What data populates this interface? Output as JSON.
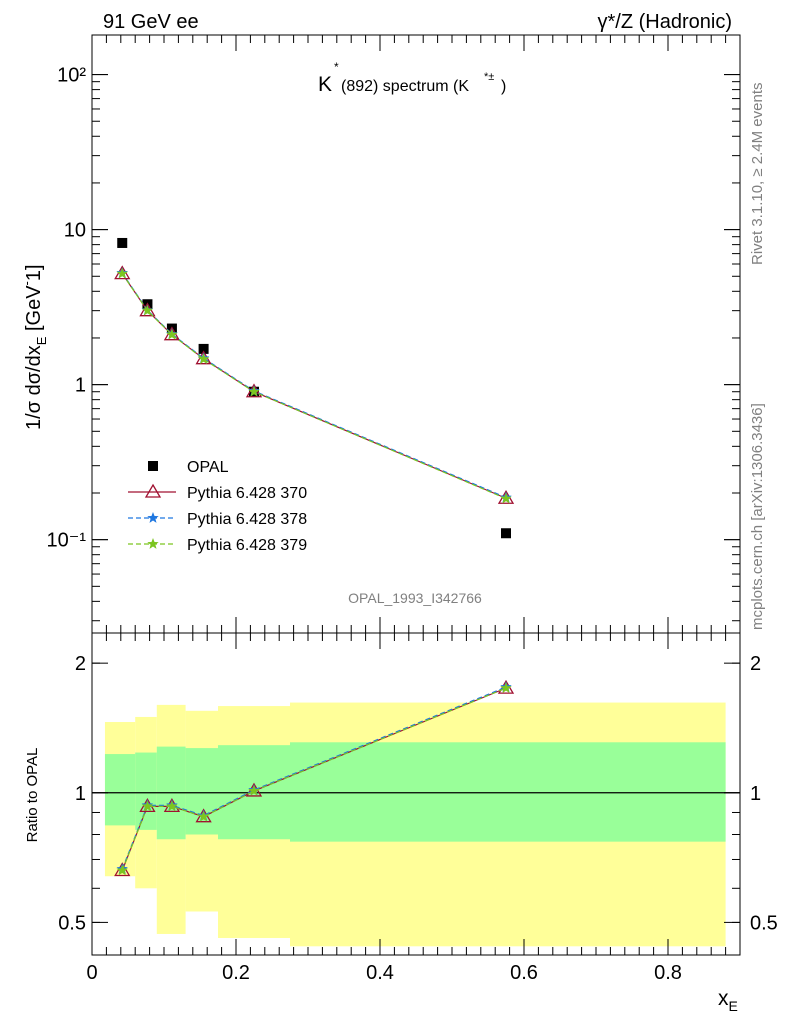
{
  "header": {
    "left": "91 GeV ee",
    "right": "γ*/Z (Hadronic)"
  },
  "side_labels": {
    "rivet": "Rivet 3.1.10, ≥ 2.4M events",
    "mcplots": "mcplots.cern.ch [arXiv:1306.3436]"
  },
  "analysis_id": "OPAL_1993_I342766",
  "chart_data": [
    {
      "type": "line",
      "title": "K*(892) spectrum (K*±)",
      "title_parts": {
        "k": "K",
        "star": "*",
        "mass": "(892) spectrum (K",
        "sup": "*±",
        "close": ")"
      },
      "ylabel": "1/σ dσ/dx_E [GeV⁻1]",
      "ylabel_parts": {
        "main": "1/σ dσ/dx",
        "sub": "E",
        "unit": " [GeV",
        "sup": "-",
        "tail": "1]"
      },
      "xlim": [
        0,
        0.9
      ],
      "ylim": [
        0.025,
        180
      ],
      "yscale": "log",
      "ytick_labels": [
        "10⁻¹",
        "1",
        "10",
        "10²"
      ],
      "ytick_values": [
        0.1,
        1,
        10,
        100
      ],
      "legend_position": "lower-left",
      "series": [
        {
          "name": "OPAL",
          "style": "markers",
          "marker": "square",
          "color": "#000000",
          "x": [
            0.042,
            0.077,
            0.111,
            0.155,
            0.225,
            0.575
          ],
          "y": [
            8.2,
            3.3,
            2.3,
            1.7,
            0.9,
            0.11
          ]
        },
        {
          "name": "Pythia 6.428 370",
          "style": "solid",
          "marker": "triangle",
          "color": "#a01030",
          "x": [
            0.042,
            0.077,
            0.111,
            0.155,
            0.225,
            0.575
          ],
          "y": [
            5.2,
            3.0,
            2.1,
            1.47,
            0.9,
            0.185
          ]
        },
        {
          "name": "Pythia 6.428 378",
          "style": "dashed",
          "marker": "star",
          "color": "#1f77e0",
          "x": [
            0.042,
            0.077,
            0.111,
            0.155,
            0.225,
            0.575
          ],
          "y": [
            5.25,
            3.02,
            2.12,
            1.48,
            0.91,
            0.187
          ]
        },
        {
          "name": "Pythia 6.428 379",
          "style": "dashed",
          "marker": "star",
          "color": "#7cc520",
          "x": [
            0.042,
            0.077,
            0.111,
            0.155,
            0.225,
            0.575
          ],
          "y": [
            5.2,
            3.0,
            2.1,
            1.46,
            0.9,
            0.184
          ]
        }
      ]
    },
    {
      "type": "line",
      "ylabel": "Ratio to OPAL",
      "xlabel": "x_E",
      "xlabel_parts": {
        "main": "x",
        "sub": "E"
      },
      "xlim": [
        0,
        0.9
      ],
      "ylim": [
        0.42,
        2.35
      ],
      "yscale": "log",
      "ytick_labels": [
        "0.5",
        "1",
        "2"
      ],
      "ytick_values": [
        0.5,
        1,
        2
      ],
      "xtick_labels": [
        "0",
        "0.2",
        "0.4",
        "0.6",
        "0.8"
      ],
      "xtick_values": [
        0,
        0.2,
        0.4,
        0.6,
        0.8
      ],
      "reference_line": 1,
      "bands": [
        {
          "x_lo": 0.018,
          "x_hi": 0.06,
          "yellow": [
            0.64,
            1.46
          ],
          "green": [
            0.84,
            1.23
          ]
        },
        {
          "x_lo": 0.06,
          "x_hi": 0.09,
          "yellow": [
            0.6,
            1.5
          ],
          "green": [
            0.82,
            1.24
          ]
        },
        {
          "x_lo": 0.09,
          "x_hi": 0.13,
          "yellow": [
            0.47,
            1.6
          ],
          "green": [
            0.78,
            1.28
          ]
        },
        {
          "x_lo": 0.13,
          "x_hi": 0.175,
          "yellow": [
            0.53,
            1.55
          ],
          "green": [
            0.8,
            1.27
          ]
        },
        {
          "x_lo": 0.175,
          "x_hi": 0.275,
          "yellow": [
            0.46,
            1.59
          ],
          "green": [
            0.78,
            1.29
          ]
        },
        {
          "x_lo": 0.275,
          "x_hi": 0.88,
          "yellow": [
            0.44,
            1.62
          ],
          "green": [
            0.77,
            1.31
          ]
        }
      ],
      "band_colors": {
        "yellow": "#ffff99",
        "green": "#99ff99"
      },
      "series": [
        {
          "name": "Pythia 6.428 370",
          "marker": "triangle",
          "color": "#a01030",
          "x": [
            0.042,
            0.077,
            0.111,
            0.155,
            0.225,
            0.575
          ],
          "y": [
            0.66,
            0.93,
            0.93,
            0.88,
            1.01,
            1.75
          ]
        },
        {
          "name": "Pythia 6.428 378",
          "marker": "star",
          "color": "#1f77e0",
          "x": [
            0.042,
            0.077,
            0.111,
            0.155,
            0.225,
            0.575
          ],
          "y": [
            0.665,
            0.935,
            0.935,
            0.885,
            1.015,
            1.76
          ]
        },
        {
          "name": "Pythia 6.428 379",
          "marker": "star",
          "color": "#7cc520",
          "x": [
            0.042,
            0.077,
            0.111,
            0.155,
            0.225,
            0.575
          ],
          "y": [
            0.66,
            0.93,
            0.93,
            0.88,
            1.01,
            1.75
          ]
        }
      ]
    }
  ]
}
